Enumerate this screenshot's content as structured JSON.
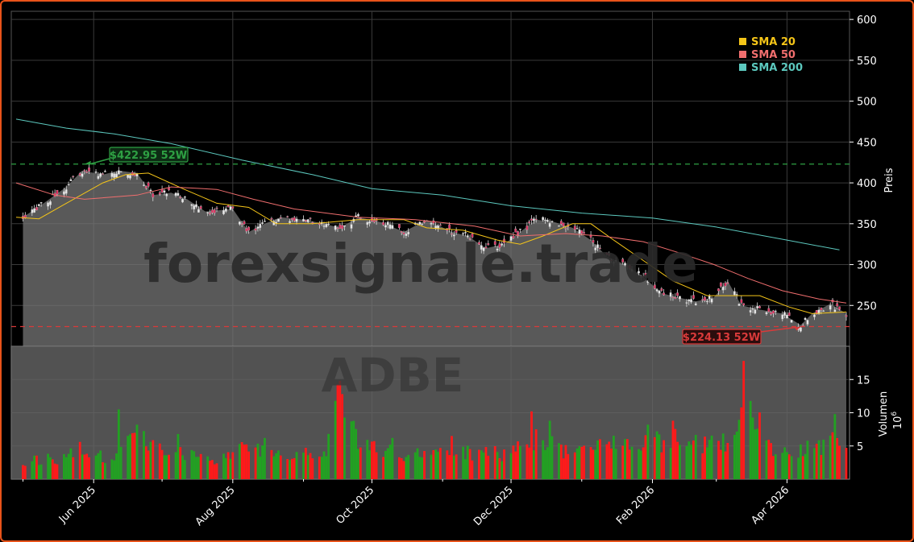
{
  "chart_data": [
    {
      "type": "candlestick",
      "ticker_watermark": "ADBE",
      "site_watermark": "forexsignale.trade",
      "ylabel": "Preis",
      "ylim": [
        200,
        610
      ],
      "yticks": [
        250,
        300,
        350,
        400,
        450,
        500,
        550,
        600
      ],
      "x_start": "2025-04-28",
      "x_end": "2026-04-27",
      "xticks": [
        {
          "date": "2025-06-01",
          "label": "Jun 2025"
        },
        {
          "date": "2025-08-01",
          "label": "Aug 2025"
        },
        {
          "date": "2025-10-01",
          "label": "Oct 2025"
        },
        {
          "date": "2025-12-01",
          "label": "Dec 2025"
        },
        {
          "date": "2026-02-01",
          "label": "Feb 2026"
        },
        {
          "date": "2026-04-01",
          "label": "Apr 2026"
        }
      ],
      "close_path": [
        [
          "2025-05-01",
          358
        ],
        [
          "2025-05-10",
          375
        ],
        [
          "2025-05-20",
          395
        ],
        [
          "2025-05-27",
          415
        ],
        [
          "2025-06-05",
          410
        ],
        [
          "2025-06-12",
          415
        ],
        [
          "2025-06-20",
          412
        ],
        [
          "2025-06-27",
          385
        ],
        [
          "2025-07-05",
          388
        ],
        [
          "2025-07-12",
          380
        ],
        [
          "2025-07-20",
          365
        ],
        [
          "2025-08-01",
          368
        ],
        [
          "2025-08-08",
          340
        ],
        [
          "2025-08-15",
          350
        ],
        [
          "2025-08-22",
          358
        ],
        [
          "2025-09-01",
          355
        ],
        [
          "2025-09-10",
          350
        ],
        [
          "2025-09-17",
          345
        ],
        [
          "2025-09-25",
          358
        ],
        [
          "2025-10-05",
          352
        ],
        [
          "2025-10-15",
          340
        ],
        [
          "2025-10-25",
          355
        ],
        [
          "2025-11-05",
          340
        ],
        [
          "2025-11-12",
          335
        ],
        [
          "2025-11-20",
          320
        ],
        [
          "2025-11-28",
          325
        ],
        [
          "2025-12-05",
          340
        ],
        [
          "2025-12-12",
          355
        ],
        [
          "2025-12-20",
          352
        ],
        [
          "2025-12-28",
          345
        ],
        [
          "2026-01-05",
          330
        ],
        [
          "2026-01-12",
          310
        ],
        [
          "2026-01-20",
          300
        ],
        [
          "2026-01-28",
          285
        ],
        [
          "2026-02-05",
          265
        ],
        [
          "2026-02-12",
          260
        ],
        [
          "2026-02-20",
          255
        ],
        [
          "2026-02-28",
          260
        ],
        [
          "2026-03-06",
          280
        ],
        [
          "2026-03-12",
          250
        ],
        [
          "2026-03-20",
          245
        ],
        [
          "2026-03-30",
          240
        ],
        [
          "2026-04-07",
          226
        ],
        [
          "2026-04-12",
          240
        ],
        [
          "2026-04-20",
          252
        ],
        [
          "2026-04-27",
          240
        ]
      ],
      "series": [
        {
          "name": "SMA 20",
          "color": "#f5c518",
          "points": [
            [
              "2025-04-28",
              358
            ],
            [
              "2025-05-08",
              356
            ],
            [
              "2025-05-20",
              375
            ],
            [
              "2025-06-05",
              400
            ],
            [
              "2025-06-15",
              410
            ],
            [
              "2025-06-25",
              412
            ],
            [
              "2025-07-10",
              393
            ],
            [
              "2025-07-25",
              375
            ],
            [
              "2025-08-08",
              370
            ],
            [
              "2025-08-20",
              350
            ],
            [
              "2025-09-05",
              350
            ],
            [
              "2025-09-25",
              355
            ],
            [
              "2025-10-15",
              355
            ],
            [
              "2025-10-25",
              345
            ],
            [
              "2025-11-10",
              342
            ],
            [
              "2025-11-25",
              330
            ],
            [
              "2025-12-05",
              325
            ],
            [
              "2025-12-15",
              335
            ],
            [
              "2025-12-28",
              350
            ],
            [
              "2026-01-05",
              350
            ],
            [
              "2026-01-15",
              330
            ],
            [
              "2026-01-28",
              305
            ],
            [
              "2026-02-10",
              280
            ],
            [
              "2026-02-25",
              262
            ],
            [
              "2026-03-08",
              262
            ],
            [
              "2026-03-20",
              262
            ],
            [
              "2026-04-02",
              248
            ],
            [
              "2026-04-12",
              240
            ],
            [
              "2026-04-27",
              242
            ]
          ]
        },
        {
          "name": "SMA 50",
          "color": "#f06e6e",
          "points": [
            [
              "2025-04-28",
              400
            ],
            [
              "2025-05-15",
              385
            ],
            [
              "2025-05-28",
              380
            ],
            [
              "2025-06-20",
              385
            ],
            [
              "2025-07-05",
              395
            ],
            [
              "2025-07-25",
              392
            ],
            [
              "2025-08-10",
              380
            ],
            [
              "2025-08-28",
              368
            ],
            [
              "2025-09-25",
              358
            ],
            [
              "2025-10-20",
              355
            ],
            [
              "2025-11-15",
              347
            ],
            [
              "2025-12-05",
              335
            ],
            [
              "2025-12-25",
              338
            ],
            [
              "2026-01-10",
              335
            ],
            [
              "2026-01-28",
              328
            ],
            [
              "2026-02-12",
              315
            ],
            [
              "2026-02-28",
              300
            ],
            [
              "2026-03-15",
              283
            ],
            [
              "2026-03-30",
              268
            ],
            [
              "2026-04-15",
              258
            ],
            [
              "2026-04-27",
              253
            ]
          ]
        },
        {
          "name": "SMA 200",
          "color": "#5cc8be",
          "points": [
            [
              "2025-04-28",
              478
            ],
            [
              "2025-05-20",
              467
            ],
            [
              "2025-06-10",
              460
            ],
            [
              "2025-07-05",
              448
            ],
            [
              "2025-08-05",
              428
            ],
            [
              "2025-09-05",
              410
            ],
            [
              "2025-10-01",
              393
            ],
            [
              "2025-11-01",
              385
            ],
            [
              "2025-12-01",
              372
            ],
            [
              "2026-01-01",
              363
            ],
            [
              "2026-02-01",
              357
            ],
            [
              "2026-03-01",
              346
            ],
            [
              "2026-04-01",
              330
            ],
            [
              "2026-04-24",
              318
            ]
          ]
        }
      ],
      "levels": [
        {
          "label": "$422.95 52W",
          "value": 422.95,
          "date": "2025-05-28",
          "color": "#2ea043"
        },
        {
          "label": "$224.13 52W",
          "value": 224.13,
          "date": "2026-04-07",
          "color": "#d93a3a"
        }
      ],
      "legend": {
        "position": "top-right",
        "items": [
          {
            "name": "SMA 20",
            "color": "#f5c518"
          },
          {
            "name": "SMA 50",
            "color": "#f06e6e"
          },
          {
            "name": "SMA 200",
            "color": "#5cc8be"
          }
        ]
      },
      "grid": true
    },
    {
      "type": "bar",
      "ylabel": "Volumen",
      "yscale_label": "10",
      "yscale_exp": "6",
      "ylim": [
        0,
        20
      ],
      "yticks": [
        5,
        10,
        15
      ],
      "colors": {
        "up": "#22a122",
        "down": "#ff1a1a"
      },
      "volume_profile": [
        [
          "2025-04-28",
          2.8
        ],
        [
          "2025-05-15",
          3.0
        ],
        [
          "2025-05-25",
          4.5
        ],
        [
          "2025-06-10",
          3.0
        ],
        [
          "2025-06-15",
          8.5
        ],
        [
          "2025-06-25",
          5.0
        ],
        [
          "2025-07-10",
          4.0
        ],
        [
          "2025-07-25",
          3.0
        ],
        [
          "2025-08-10",
          5.0
        ],
        [
          "2025-08-25",
          3.8
        ],
        [
          "2025-09-10",
          3.5
        ],
        [
          "2025-09-17",
          13.5
        ],
        [
          "2025-09-25",
          5.5
        ],
        [
          "2025-10-10",
          4.0
        ],
        [
          "2025-10-25",
          3.5
        ],
        [
          "2025-11-15",
          4.0
        ],
        [
          "2025-11-30",
          3.8
        ],
        [
          "2025-12-15",
          6.0
        ],
        [
          "2025-12-28",
          3.5
        ],
        [
          "2026-01-10",
          5.5
        ],
        [
          "2026-01-25",
          5.0
        ],
        [
          "2026-02-10",
          6.0
        ],
        [
          "2026-02-25",
          5.0
        ],
        [
          "2026-03-10",
          6.0
        ],
        [
          "2026-03-15",
          11.0
        ],
        [
          "2026-03-25",
          5.0
        ],
        [
          "2026-04-10",
          4.5
        ],
        [
          "2026-04-27",
          6.0
        ]
      ],
      "spikes": [
        {
          "date": "2025-06-12",
          "value": 10.5
        },
        {
          "date": "2025-06-20",
          "value": 8.2
        },
        {
          "date": "2025-07-08",
          "value": 6.8
        },
        {
          "date": "2025-08-15",
          "value": 6.2
        },
        {
          "date": "2025-09-15",
          "value": 11.8
        },
        {
          "date": "2025-09-17",
          "value": 14.8
        },
        {
          "date": "2025-09-18",
          "value": 12.8
        },
        {
          "date": "2025-09-27",
          "value": 7.8
        },
        {
          "date": "2025-10-10",
          "value": 6.2
        },
        {
          "date": "2025-11-05",
          "value": 6.5
        },
        {
          "date": "2025-12-10",
          "value": 10.2
        },
        {
          "date": "2025-12-12",
          "value": 7.5
        },
        {
          "date": "2025-12-18",
          "value": 8.8
        },
        {
          "date": "2026-01-10",
          "value": 8.5
        },
        {
          "date": "2026-01-30",
          "value": 8.2
        },
        {
          "date": "2026-02-10",
          "value": 8.8
        },
        {
          "date": "2026-03-12",
          "value": 10.8
        },
        {
          "date": "2026-03-13",
          "value": 17.8
        },
        {
          "date": "2026-03-14",
          "value": 11.8
        },
        {
          "date": "2026-03-22",
          "value": 10.5
        },
        {
          "date": "2026-04-22",
          "value": 9.8
        }
      ]
    }
  ]
}
